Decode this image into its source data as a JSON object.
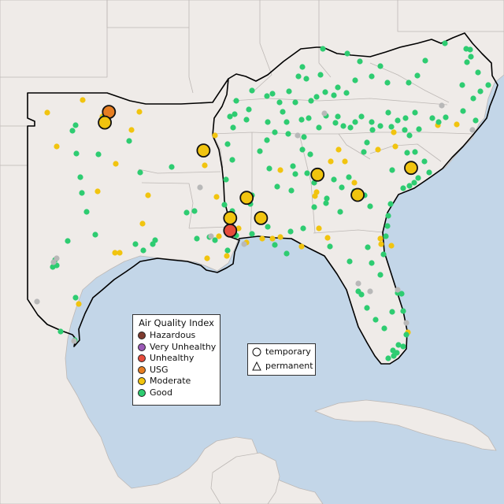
{
  "legend": {
    "title": "Air Quality Index",
    "categories": [
      {
        "label": "Hazardous",
        "color": "#7e3b2f"
      },
      {
        "label": "Very Unhealthy",
        "color": "#9b59b6"
      },
      {
        "label": "Unhealthy",
        "color": "#e74c3c"
      },
      {
        "label": "USG",
        "color": "#e67e22"
      },
      {
        "label": "Moderate",
        "color": "#f1c40f"
      },
      {
        "label": "Good",
        "color": "#2ecc71"
      }
    ]
  },
  "monitor_types": {
    "temporary": "temporary",
    "permanent": "permanent"
  },
  "colors": {
    "water": "#c3d6e8",
    "land": "#efebe8",
    "border": "#bdb8b5",
    "highlight_border": "#000000",
    "offline": "#b8b8b8"
  },
  "large_sites": [
    {
      "aqi": "USG",
      "lon": -96.9,
      "lat": 36.75
    },
    {
      "aqi": "Moderate",
      "lon": -97.1,
      "lat": 36.2
    },
    {
      "aqi": "Moderate",
      "lon": -92.3,
      "lat": 34.75
    },
    {
      "aqi": "Moderate",
      "lon": -90.2,
      "lat": 32.3
    },
    {
      "aqi": "Moderate",
      "lon": -91.0,
      "lat": 31.25
    },
    {
      "aqi": "Moderate",
      "lon": -89.5,
      "lat": 31.25
    },
    {
      "aqi": "Unhealthy",
      "lon": -91.0,
      "lat": 30.6
    },
    {
      "aqi": "Moderate",
      "lon": -86.75,
      "lat": 33.5
    },
    {
      "aqi": "Moderate",
      "lon": -84.8,
      "lat": 32.45
    },
    {
      "aqi": "Moderate",
      "lon": -82.2,
      "lat": 33.85
    }
  ]
}
